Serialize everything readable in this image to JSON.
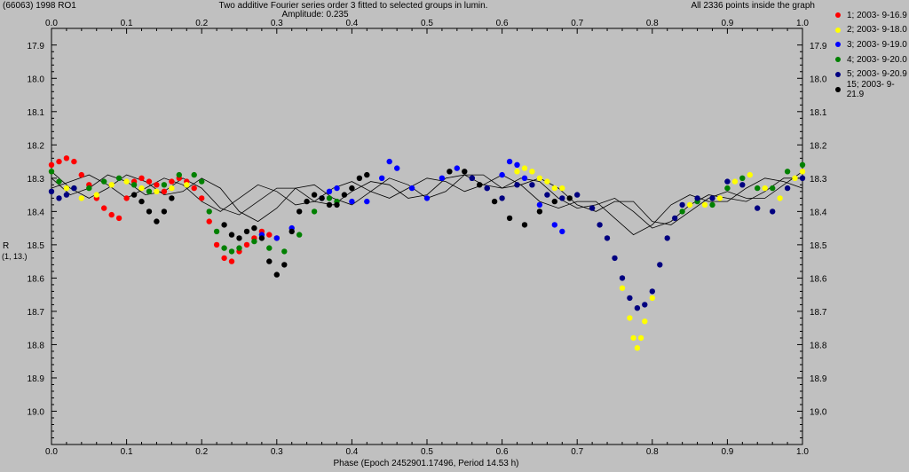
{
  "header": {
    "object_name": "(66063) 1998 RO1",
    "title": "Two additive Fourier series order 3 fitted to selected groups in lumin.",
    "amplitude": "Amplitude: 0.235",
    "points_info": "All 2336 points inside the graph"
  },
  "colors": {
    "background": "#c0c0c0",
    "axis": "#000000",
    "fit_line": "#000000"
  },
  "chart_data": {
    "type": "scatter",
    "title": "Two additive Fourier series order 3 fitted to selected groups in lumin.",
    "xlabel": "Phase (Epoch 2452901.17496, Period 14.53 h)",
    "ylabel": "R",
    "ylabel_sub": "(1, 13.)",
    "xlim": [
      0.0,
      1.0
    ],
    "ylim": [
      17.85,
      19.1
    ],
    "y_inverted": true,
    "grid": false,
    "legend_position": "right",
    "x_ticks": [
      "0.0",
      "0.1",
      "0.2",
      "0.3",
      "0.4",
      "0.5",
      "0.6",
      "0.7",
      "0.8",
      "0.9",
      "1.0"
    ],
    "y_ticks": [
      "17.9",
      "18.0",
      "18.1",
      "18.2",
      "18.3",
      "18.4",
      "18.5",
      "18.6",
      "18.7",
      "18.8",
      "18.9",
      "19.0"
    ],
    "fit_curves": [
      {
        "x": [
          0.0,
          0.025,
          0.05,
          0.075,
          0.1,
          0.125,
          0.15,
          0.175,
          0.2,
          0.225,
          0.25,
          0.275,
          0.3,
          0.325,
          0.35,
          0.375,
          0.4,
          0.425,
          0.45,
          0.475,
          0.5,
          0.525,
          0.55,
          0.575,
          0.6,
          0.625,
          0.65,
          0.675,
          0.7,
          0.725,
          0.75,
          0.775,
          0.8,
          0.825,
          0.85,
          0.875,
          0.9,
          0.925,
          0.95,
          0.975,
          1.0
        ],
        "y": [
          18.28,
          18.33,
          18.36,
          18.33,
          18.29,
          18.31,
          18.35,
          18.34,
          18.3,
          18.33,
          18.4,
          18.43,
          18.39,
          18.33,
          18.32,
          18.36,
          18.38,
          18.34,
          18.3,
          18.32,
          18.36,
          18.34,
          18.29,
          18.29,
          18.33,
          18.32,
          18.3,
          18.33,
          18.38,
          18.4,
          18.37,
          18.37,
          18.43,
          18.44,
          18.4,
          18.36,
          18.34,
          18.36,
          18.36,
          18.32,
          18.28
        ]
      },
      {
        "x": [
          0.0,
          0.025,
          0.05,
          0.075,
          0.1,
          0.125,
          0.15,
          0.175,
          0.2,
          0.225,
          0.25,
          0.275,
          0.3,
          0.325,
          0.35,
          0.375,
          0.4,
          0.425,
          0.45,
          0.475,
          0.5,
          0.525,
          0.55,
          0.575,
          0.6,
          0.625,
          0.65,
          0.675,
          0.7,
          0.725,
          0.75,
          0.775,
          0.8,
          0.825,
          0.85,
          0.875,
          0.9,
          0.925,
          0.95,
          0.975,
          1.0
        ],
        "y": [
          18.3,
          18.35,
          18.33,
          18.29,
          18.31,
          18.35,
          18.34,
          18.3,
          18.33,
          18.39,
          18.41,
          18.37,
          18.33,
          18.33,
          18.37,
          18.38,
          18.34,
          18.31,
          18.32,
          18.36,
          18.35,
          18.3,
          18.29,
          18.32,
          18.33,
          18.3,
          18.31,
          18.36,
          18.39,
          18.38,
          18.36,
          18.4,
          18.45,
          18.43,
          18.38,
          18.35,
          18.36,
          18.37,
          18.34,
          18.3,
          18.3
        ]
      },
      {
        "x": [
          0.0,
          0.025,
          0.05,
          0.075,
          0.1,
          0.125,
          0.15,
          0.175,
          0.2,
          0.225,
          0.25,
          0.275,
          0.3,
          0.325,
          0.35,
          0.375,
          0.4,
          0.425,
          0.45,
          0.475,
          0.5,
          0.525,
          0.55,
          0.575,
          0.6,
          0.625,
          0.65,
          0.675,
          0.7,
          0.725,
          0.75,
          0.775,
          0.8,
          0.825,
          0.85,
          0.875,
          0.9,
          0.925,
          0.95,
          0.975,
          1.0
        ],
        "y": [
          18.33,
          18.31,
          18.29,
          18.32,
          18.36,
          18.33,
          18.3,
          18.32,
          18.37,
          18.4,
          18.36,
          18.32,
          18.34,
          18.38,
          18.37,
          18.33,
          18.31,
          18.34,
          18.36,
          18.33,
          18.3,
          18.31,
          18.34,
          18.32,
          18.29,
          18.32,
          18.37,
          18.39,
          18.37,
          18.37,
          18.42,
          18.47,
          18.44,
          18.38,
          18.35,
          18.37,
          18.37,
          18.33,
          18.3,
          18.31,
          18.33
        ]
      }
    ],
    "series": [
      {
        "name": "1; 2003- 9-16.9",
        "color": "#ff0000",
        "x": [
          0.0,
          0.01,
          0.02,
          0.03,
          0.04,
          0.05,
          0.06,
          0.07,
          0.08,
          0.09,
          0.1,
          0.11,
          0.12,
          0.13,
          0.14,
          0.15,
          0.16,
          0.17,
          0.18,
          0.19,
          0.2,
          0.21,
          0.22,
          0.23,
          0.24,
          0.25,
          0.26,
          0.27,
          0.28,
          0.29,
          0.3
        ],
        "y": [
          18.26,
          18.25,
          18.24,
          18.25,
          18.29,
          18.32,
          18.36,
          18.39,
          18.41,
          18.42,
          18.36,
          18.31,
          18.3,
          18.31,
          18.32,
          18.34,
          18.31,
          18.3,
          18.31,
          18.33,
          18.36,
          18.43,
          18.5,
          18.54,
          18.55,
          18.52,
          18.5,
          18.48,
          18.46,
          18.47,
          18.48
        ]
      },
      {
        "name": "2; 2003- 9-18.0",
        "color": "#ffff00",
        "x": [
          0.0,
          0.02,
          0.04,
          0.06,
          0.08,
          0.1,
          0.12,
          0.14,
          0.16,
          0.18,
          0.62,
          0.63,
          0.64,
          0.65,
          0.66,
          0.67,
          0.68,
          0.76,
          0.77,
          0.775,
          0.78,
          0.785,
          0.79,
          0.8,
          0.85,
          0.87,
          0.89,
          0.91,
          0.93,
          0.95,
          0.97,
          0.99,
          1.0
        ],
        "y": [
          18.28,
          18.33,
          18.36,
          18.35,
          18.32,
          18.31,
          18.33,
          18.34,
          18.33,
          18.32,
          18.28,
          18.27,
          18.28,
          18.3,
          18.31,
          18.33,
          18.33,
          18.63,
          18.72,
          18.78,
          18.81,
          18.78,
          18.73,
          18.66,
          18.38,
          18.38,
          18.36,
          18.31,
          18.29,
          18.33,
          18.36,
          18.3,
          18.28
        ]
      },
      {
        "name": "3; 2003- 9-19.0",
        "color": "#0000ff",
        "x": [
          0.28,
          0.3,
          0.32,
          0.36,
          0.37,
          0.38,
          0.4,
          0.42,
          0.44,
          0.45,
          0.46,
          0.48,
          0.5,
          0.52,
          0.54,
          0.56,
          0.58,
          0.6,
          0.61,
          0.62,
          0.63,
          0.65,
          0.67,
          0.68
        ],
        "y": [
          18.47,
          18.48,
          18.45,
          18.36,
          18.34,
          18.33,
          18.37,
          18.37,
          18.3,
          18.25,
          18.27,
          18.33,
          18.36,
          18.3,
          18.27,
          18.3,
          18.33,
          18.29,
          18.25,
          18.26,
          18.3,
          18.38,
          18.44,
          18.46
        ]
      },
      {
        "name": "4; 2003- 9-20.0",
        "color": "#008000",
        "x": [
          0.0,
          0.01,
          0.03,
          0.05,
          0.07,
          0.09,
          0.11,
          0.13,
          0.15,
          0.17,
          0.19,
          0.2,
          0.21,
          0.22,
          0.23,
          0.24,
          0.25,
          0.27,
          0.29,
          0.31,
          0.33,
          0.35,
          0.37,
          0.38,
          0.84,
          0.86,
          0.88,
          0.9,
          0.92,
          0.94,
          0.96,
          0.98,
          1.0
        ],
        "y": [
          18.28,
          18.31,
          18.33,
          18.33,
          18.31,
          18.3,
          18.32,
          18.34,
          18.32,
          18.29,
          18.29,
          18.31,
          18.4,
          18.46,
          18.51,
          18.52,
          18.51,
          18.49,
          18.51,
          18.52,
          18.47,
          18.4,
          18.36,
          18.37,
          18.4,
          18.37,
          18.38,
          18.33,
          18.3,
          18.33,
          18.33,
          18.28,
          18.26
        ]
      },
      {
        "name": "5; 2003- 9-20.9",
        "color": "#000080",
        "x": [
          0.0,
          0.01,
          0.02,
          0.03,
          0.56,
          0.58,
          0.6,
          0.62,
          0.64,
          0.66,
          0.68,
          0.7,
          0.72,
          0.73,
          0.74,
          0.75,
          0.76,
          0.77,
          0.78,
          0.79,
          0.8,
          0.81,
          0.82,
          0.83,
          0.84,
          0.86,
          0.88,
          0.9,
          0.92,
          0.94,
          0.96,
          0.98,
          1.0
        ],
        "y": [
          18.34,
          18.36,
          18.35,
          18.33,
          18.3,
          18.33,
          18.36,
          18.32,
          18.32,
          18.35,
          18.36,
          18.35,
          18.39,
          18.44,
          18.48,
          18.54,
          18.6,
          18.66,
          18.69,
          18.68,
          18.64,
          18.56,
          18.48,
          18.42,
          18.38,
          18.36,
          18.36,
          18.31,
          18.32,
          18.39,
          18.4,
          18.33,
          18.3
        ]
      },
      {
        "name": "15; 2003- 9-21.9",
        "color": "#000000",
        "x": [
          0.11,
          0.12,
          0.13,
          0.14,
          0.15,
          0.16,
          0.23,
          0.24,
          0.25,
          0.26,
          0.27,
          0.28,
          0.29,
          0.3,
          0.31,
          0.32,
          0.33,
          0.34,
          0.35,
          0.36,
          0.37,
          0.38,
          0.39,
          0.4,
          0.41,
          0.42,
          0.53,
          0.55,
          0.57,
          0.59,
          0.61,
          0.63,
          0.65,
          0.67,
          0.69
        ],
        "y": [
          18.35,
          18.37,
          18.4,
          18.43,
          18.4,
          18.36,
          18.44,
          18.47,
          18.48,
          18.46,
          18.45,
          18.48,
          18.55,
          18.59,
          18.56,
          18.46,
          18.4,
          18.37,
          18.35,
          18.36,
          18.38,
          18.38,
          18.35,
          18.33,
          18.3,
          18.29,
          18.28,
          18.28,
          18.32,
          18.37,
          18.42,
          18.44,
          18.4,
          18.37,
          18.36
        ]
      }
    ]
  }
}
